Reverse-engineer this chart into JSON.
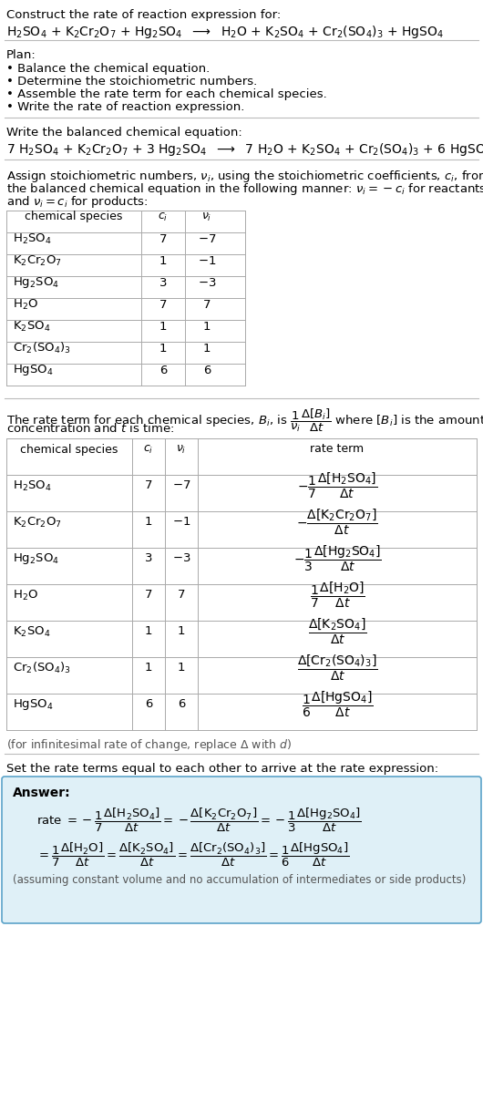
{
  "bg_color": "#ffffff",
  "text_color": "#000000",
  "title_line1": "Construct the rate of reaction expression for:",
  "plan_header": "Plan:",
  "plan_items": [
    "• Balance the chemical equation.",
    "• Determine the stoichiometric numbers.",
    "• Assemble the rate term for each chemical species.",
    "• Write the rate of reaction expression."
  ],
  "balanced_intro": "Write the balanced chemical equation:",
  "stoich_intro_lines": [
    "Assign stoichiometric numbers, $\\nu_i$, using the stoichiometric coefficients, $c_i$, from",
    "the balanced chemical equation in the following manner: $\\nu_i = -c_i$ for reactants",
    "and $\\nu_i = c_i$ for products:"
  ],
  "table1_headers": [
    "chemical species",
    "$c_i$",
    "$\\nu_i$"
  ],
  "table1_data": [
    [
      "$\\mathrm{H_2SO_4}$",
      "7",
      "$-7$"
    ],
    [
      "$\\mathrm{K_2Cr_2O_7}$",
      "1",
      "$-1$"
    ],
    [
      "$\\mathrm{Hg_2SO_4}$",
      "3",
      "$-3$"
    ],
    [
      "$\\mathrm{H_2O}$",
      "7",
      "7"
    ],
    [
      "$\\mathrm{K_2SO_4}$",
      "1",
      "1"
    ],
    [
      "$\\mathrm{Cr_2(SO_4)_3}$",
      "1",
      "1"
    ],
    [
      "$\\mathrm{HgSO_4}$",
      "6",
      "6"
    ]
  ],
  "rate_intro_lines": [
    "The rate term for each chemical species, $B_i$, is $\\dfrac{1}{\\nu_i}\\dfrac{\\Delta[B_i]}{\\Delta t}$ where $[B_i]$ is the amount",
    "concentration and $t$ is time:"
  ],
  "table2_headers": [
    "chemical species",
    "$c_i$",
    "$\\nu_i$",
    "rate term"
  ],
  "table2_data": [
    [
      "$\\mathrm{H_2SO_4}$",
      "7",
      "$-7$",
      "$-\\dfrac{1}{7}\\dfrac{\\Delta[\\mathrm{H_2SO_4}]}{\\Delta t}$"
    ],
    [
      "$\\mathrm{K_2Cr_2O_7}$",
      "1",
      "$-1$",
      "$-\\dfrac{\\Delta[\\mathrm{K_2Cr_2O_7}]}{\\Delta t}$"
    ],
    [
      "$\\mathrm{Hg_2SO_4}$",
      "3",
      "$-3$",
      "$-\\dfrac{1}{3}\\dfrac{\\Delta[\\mathrm{Hg_2SO_4}]}{\\Delta t}$"
    ],
    [
      "$\\mathrm{H_2O}$",
      "7",
      "7",
      "$\\dfrac{1}{7}\\dfrac{\\Delta[\\mathrm{H_2O}]}{\\Delta t}$"
    ],
    [
      "$\\mathrm{K_2SO_4}$",
      "1",
      "1",
      "$\\dfrac{\\Delta[\\mathrm{K_2SO_4}]}{\\Delta t}$"
    ],
    [
      "$\\mathrm{Cr_2(SO_4)_3}$",
      "1",
      "1",
      "$\\dfrac{\\Delta[\\mathrm{Cr_2(SO_4)_3}]}{\\Delta t}$"
    ],
    [
      "$\\mathrm{HgSO_4}$",
      "6",
      "6",
      "$\\dfrac{1}{6}\\dfrac{\\Delta[\\mathrm{HgSO_4}]}{\\Delta t}$"
    ]
  ],
  "infinitesimal_note": "(for infinitesimal rate of change, replace $\\Delta$ with $d$)",
  "set_rate_intro": "Set the rate terms equal to each other to arrive at the rate expression:",
  "answer_box_color": "#dff0f7",
  "answer_box_border": "#5ba3c9",
  "answer_label": "Answer:",
  "answer_note": "(assuming constant volume and no accumulation of intermediates or side products)"
}
